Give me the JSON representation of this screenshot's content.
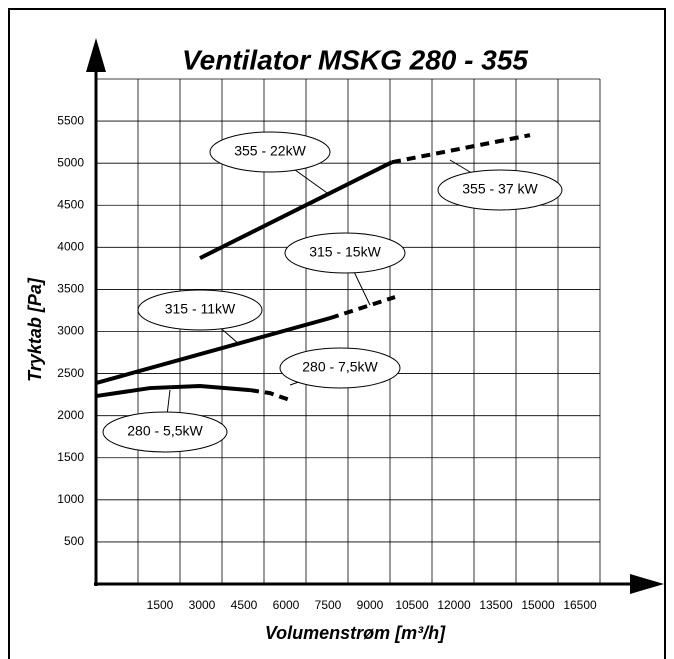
{
  "chart_data": {
    "type": "line",
    "title": "Ventilator MSKG 280 - 355",
    "x_label": "Volumenstrøm [m³/h]",
    "y_label": "Tryktab [Pa]",
    "xlim": [
      0,
      18000
    ],
    "ylim": [
      0,
      6000
    ],
    "xticks": [
      1500,
      3000,
      4500,
      6000,
      7500,
      9000,
      10500,
      12000,
      13500,
      15000,
      16500
    ],
    "yticks": [
      500,
      1000,
      1500,
      2000,
      2500,
      3000,
      3500,
      4000,
      4500,
      5000,
      5500
    ],
    "grid": true,
    "series": [
      {
        "name": "280 - 5,5kW",
        "color": "#000000",
        "style": "solid",
        "x": [
          0,
          1929,
          3714,
          5500
        ],
        "values": [
          2233,
          2328,
          2352,
          2304
        ]
      },
      {
        "name": "280 - 7,5kW",
        "color": "#000000",
        "style": "dashed",
        "x": [
          5500,
          6214,
          6929
        ],
        "values": [
          2304,
          2268,
          2185
        ]
      },
      {
        "name": "315 - 11kW",
        "color": "#000000",
        "style": "solid",
        "x": [
          0,
          8357
        ],
        "values": [
          2387,
          3159
        ]
      },
      {
        "name": "315 - 15kW",
        "color": "#000000",
        "style": "dashed",
        "x": [
          8357,
          10679
        ],
        "values": [
          3159,
          3409
        ]
      },
      {
        "name": "355 - 22kW",
        "color": "#000000",
        "style": "solid",
        "x": [
          3714,
          10571
        ],
        "values": [
          3872,
          5012
        ]
      },
      {
        "name": "355 - 37 kW",
        "color": "#000000",
        "style": "dashed",
        "x": [
          10571,
          15500
        ],
        "values": [
          5012,
          5333
        ]
      }
    ]
  }
}
